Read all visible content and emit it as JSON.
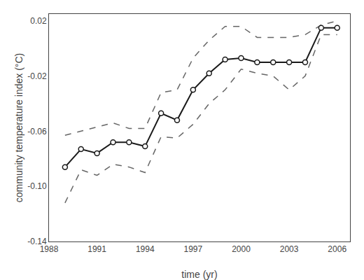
{
  "chart_data": {
    "type": "line",
    "x": [
      1989,
      1990,
      1991,
      1992,
      1993,
      1994,
      1995,
      1996,
      1997,
      1998,
      1999,
      2000,
      2001,
      2002,
      2003,
      2004,
      2005,
      2006
    ],
    "series": [
      {
        "color": "#666666",
        "line_style": "dashed",
        "marker": "none",
        "values": [
          -0.063,
          -0.06,
          -0.057,
          -0.054,
          -0.058,
          -0.058,
          -0.032,
          -0.03,
          -0.007,
          0.006,
          0.016,
          0.016,
          0.008,
          0.008,
          0.008,
          0.01,
          0.017,
          0.02
        ]
      },
      {
        "color": "#666666",
        "line_style": "dashed",
        "marker": "none",
        "values": [
          -0.112,
          -0.088,
          -0.092,
          -0.084,
          -0.086,
          -0.09,
          -0.064,
          -0.065,
          -0.055,
          -0.04,
          -0.03,
          -0.015,
          -0.018,
          -0.02,
          -0.03,
          -0.02,
          0.01,
          0.01
        ]
      },
      {
        "color": "#1a1a1a",
        "line_style": "solid",
        "marker": "circle",
        "values": [
          -0.086,
          -0.073,
          -0.076,
          -0.068,
          -0.068,
          -0.071,
          -0.047,
          -0.052,
          -0.03,
          -0.018,
          -0.008,
          -0.007,
          -0.01,
          -0.01,
          -0.01,
          -0.01,
          0.015,
          0.015
        ]
      }
    ],
    "xlim": [
      1988.0,
      2006.8
    ],
    "ylim": [
      -0.14,
      0.025
    ],
    "xticks": [
      1988,
      1991,
      1994,
      1997,
      2000,
      2003,
      2006
    ],
    "yticks": [
      -0.14,
      {
        "value": -0.1,
        "label": "-0.10"
      },
      -0.06,
      -0.02,
      0.02
    ],
    "xlabel": "time (yr)",
    "ylabel": "community temperature index (°C)",
    "grid": false
  }
}
